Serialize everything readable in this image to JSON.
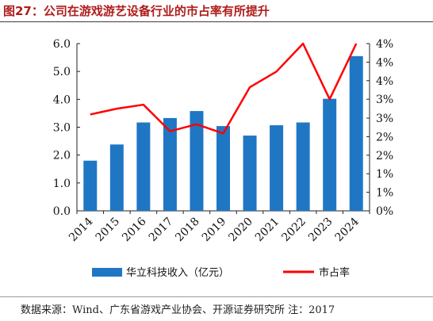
{
  "header": {
    "figure_title": "图27：公司在游戏游艺设备行业的市占率有所提升"
  },
  "footer": {
    "source": "数据来源：Wind、广东省游戏产业协会、开源证券研究所  注：2017"
  },
  "colors": {
    "bar": "#1f77c4",
    "line": "#ff0000",
    "title": "#b01c1c"
  },
  "chart_data": {
    "type": "bar",
    "categories": [
      "2014",
      "2015",
      "2016",
      "2017",
      "2018",
      "2019",
      "2020",
      "2021",
      "2022",
      "2023",
      "2024"
    ],
    "series": [
      {
        "name": "华立科技收入（亿元）",
        "type": "bar",
        "axis": "left",
        "values": [
          1.8,
          2.38,
          3.17,
          3.33,
          3.58,
          3.04,
          2.7,
          3.07,
          3.17,
          4.02,
          5.55
        ]
      },
      {
        "name": "市占率",
        "type": "line",
        "axis": "right",
        "values": [
          2.65,
          2.81,
          2.92,
          2.19,
          2.38,
          2.13,
          3.4,
          3.83,
          4.6,
          3.07,
          4.6
        ]
      }
    ],
    "left_axis": {
      "ylim": [
        0,
        6
      ],
      "ticks": [
        0,
        1,
        2,
        3,
        4,
        5,
        6
      ],
      "tick_labels": [
        "0.0",
        "1.0",
        "2.0",
        "3.0",
        "4.0",
        "5.0",
        "6.0"
      ]
    },
    "right_axis": {
      "ylim": [
        0,
        4.6
      ],
      "ticks": [
        0,
        0.51,
        1.02,
        1.53,
        2.04,
        2.55,
        3.07,
        3.58,
        4.09,
        4.6
      ],
      "tick_labels": [
        "0%",
        "1%",
        "1%",
        "2%",
        "2%",
        "3%",
        "3%",
        "4%",
        "4%",
        "4%"
      ]
    },
    "legend": [
      "华立科技收入（亿元）",
      "市占率"
    ],
    "legend_position": "bottom",
    "grid": false
  }
}
